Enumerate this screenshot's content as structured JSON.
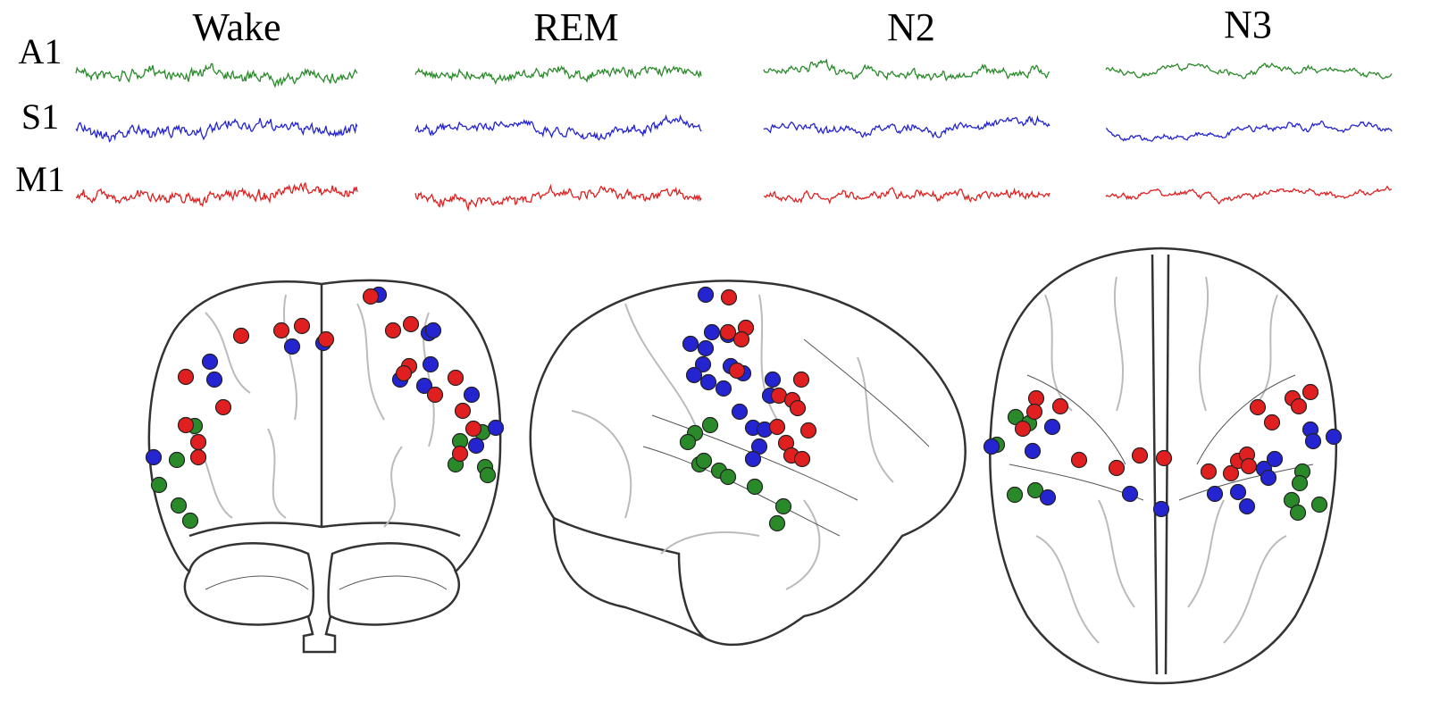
{
  "stages": [
    "Wake",
    "REM",
    "N2",
    "N3"
  ],
  "channels": [
    {
      "label": "A1",
      "color": "#2a8a2a"
    },
    {
      "label": "S1",
      "color": "#2424d0"
    },
    {
      "label": "M1",
      "color": "#e02020"
    }
  ]
}
